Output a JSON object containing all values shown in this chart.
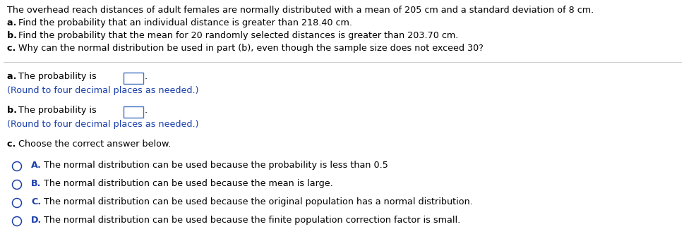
{
  "header_text": "The overhead reach distances of adult females are normally distributed with a mean of 205 cm and a standard deviation of 8 cm.",
  "line_a_rest": "Find the probability that an individual distance is greater than 218.40 cm.",
  "line_b_rest": "Find the probability that the mean for 20 randomly selected distances is greater than 203.70 cm.",
  "line_c_rest": "Why can the normal distribution be used in part (b), even though the sample size does not exceed 30?",
  "answer_a_round": "(Round to four decimal places as needed.)",
  "answer_b_round": "(Round to four decimal places as needed.)",
  "answer_c_label": "Choose the correct answer below.",
  "choice_A_label": "A.",
  "choice_A_text": "  The normal distribution can be used because the probability is less than 0.5",
  "choice_B_label": "B.",
  "choice_B_text": "  The normal distribution can be used because the mean is large.",
  "choice_C_label": "C.",
  "choice_C_text": "  The normal distribution can be used because the original population has a normal distribution.",
  "choice_D_label": "D.",
  "choice_D_text": "  The normal distribution can be used because the finite population correction factor is small.",
  "bg_color": "#ffffff",
  "text_color_black": "#000000",
  "text_color_blue": "#1a3faa",
  "circle_color": "#1a3faa",
  "divider_color": "#cccccc",
  "box_edge_color": "#4472c4",
  "font_size": 9.2
}
